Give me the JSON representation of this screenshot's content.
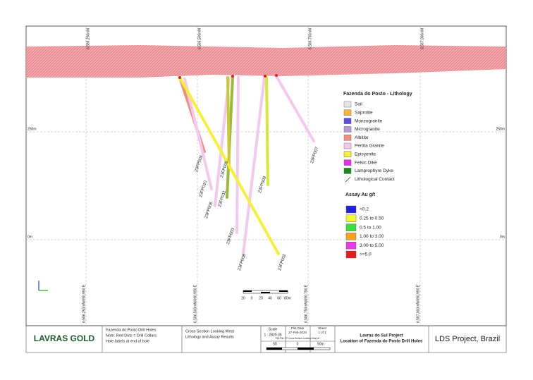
{
  "map": {
    "top_coords": [
      "6,586,250mN",
      "6,586,500mN",
      "6,586,750mN",
      "6,587,000mN"
    ],
    "bottom_coords": [
      "6,586,250mN/690,990 E",
      "6,586,500mN/690,990 E",
      "6,586,750mN/690,790 E",
      "6,587,000mN/690,990 E"
    ],
    "elevation_labels": [
      "250m",
      "0m"
    ],
    "holes": [
      "23FP004",
      "23FP010",
      "23FP006",
      "23FP011",
      "23FP005",
      "23FP003",
      "23FP008",
      "23FP009",
      "23FP002",
      "23FP007"
    ],
    "scale_bar": [
      "20",
      "0",
      "20",
      "40",
      "60",
      "80m"
    ]
  },
  "lithology_legend": {
    "title": "Fazenda do Posto - Lithology",
    "items": [
      {
        "label": "Soil",
        "color": "#e6e6e6"
      },
      {
        "label": "Saprolite",
        "color": "#f5b63a"
      },
      {
        "label": "Monzogranite",
        "color": "#5a4fd6"
      },
      {
        "label": "Microgranite",
        "color": "#b79ad6"
      },
      {
        "label": "Albitite",
        "color": "#f08f80"
      },
      {
        "label": "Pertita Granite",
        "color": "#f4c9ee"
      },
      {
        "label": "Episyenite",
        "color": "#f5f03a"
      },
      {
        "label": "Felsic Dike",
        "color": "#e830e8"
      },
      {
        "label": "Lamprophyre Dyke",
        "color": "#1e8a1e"
      },
      {
        "label": "Lithological Contact",
        "color": "none"
      }
    ]
  },
  "assay_legend": {
    "title": "Assay Au g/t",
    "items": [
      {
        "label": "<0.2",
        "color": "#1f1fe0"
      },
      {
        "label": "0.25 to 0.50",
        "color": "#f5f53a"
      },
      {
        "label": "0.5 to 1.00",
        "color": "#3ae03a"
      },
      {
        "label": "1.00 to 3.00",
        "color": "#f5a21e"
      },
      {
        "label": "3.00 to 5.00",
        "color": "#e83ae8"
      },
      {
        "label": ">=5.0",
        "color": "#e01f1f"
      }
    ]
  },
  "title_block": {
    "logo": "LAVRAS GOLD",
    "notes": [
      "Fazenda do Posto Drill Holes",
      "Note: Red Dots = Drill Collars",
      "Hole labels at end of hole"
    ],
    "section": [
      "Cross Section Looking West",
      "Lithology and Assay Results"
    ],
    "scale_label": "Scale",
    "scale_value": "1 : 2829.35",
    "plot_date_label": "Plot Date",
    "plot_date": "27-Feb-2024",
    "sheet_label": "Sheet",
    "sheet": "1 of 1",
    "plot_file": "Plot File: FP Cross Section Looking West v2",
    "scale_bar": [
      "50",
      "0",
      "50m"
    ],
    "project": [
      "Lavras do Sul Project",
      "Location of Fazenda do Posto Drill Holes"
    ],
    "name": "LDS Project, Brazil"
  }
}
